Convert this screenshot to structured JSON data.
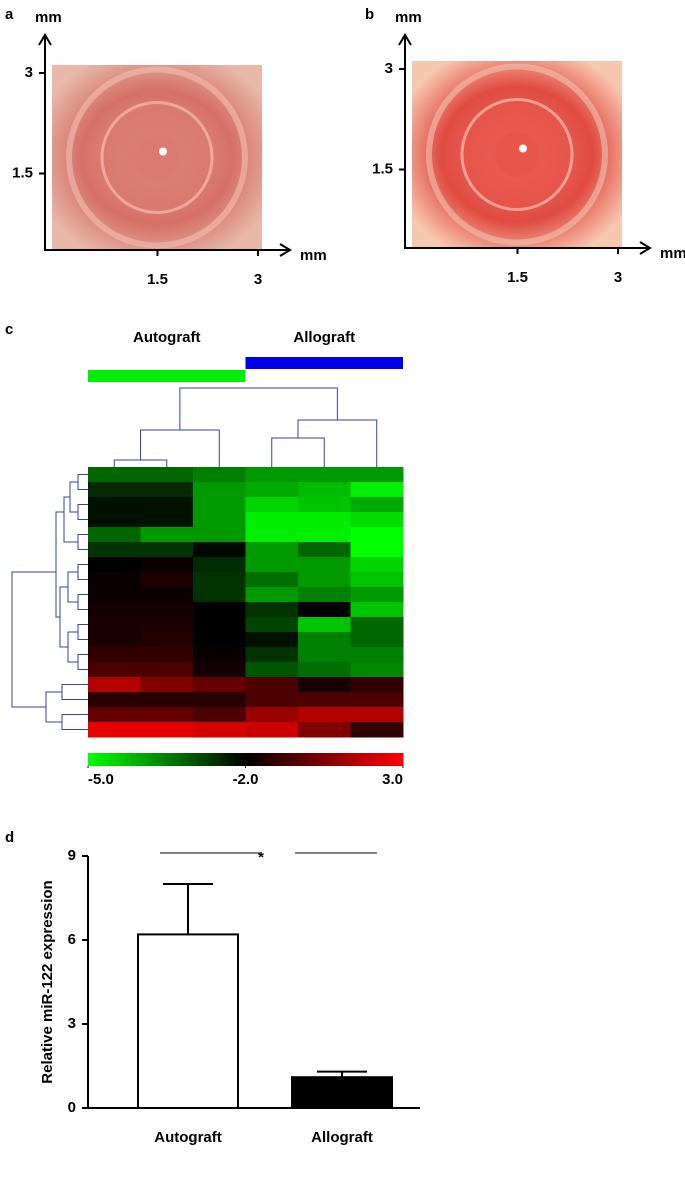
{
  "chart_data": [
    {
      "type": "image",
      "label": "a",
      "x_label": "mm",
      "y_label": "mm",
      "xlim": [
        0,
        3
      ],
      "ylim": [
        0,
        3
      ],
      "xticks": [
        1.5,
        3
      ],
      "yticks": [
        1.5,
        3
      ],
      "color": "#d97a70"
    },
    {
      "type": "image",
      "label": "b",
      "x_label": "mm",
      "y_label": "mm",
      "xlim": [
        0,
        3
      ],
      "ylim": [
        0,
        3
      ],
      "xticks": [
        1.5,
        3
      ],
      "yticks": [
        1.5,
        3
      ],
      "color": "#e8554a"
    },
    {
      "type": "heatmap",
      "label": "c",
      "column_groups": [
        {
          "name": "Autograft",
          "color": "#00ee00"
        },
        {
          "name": "Allograft",
          "color": "#0000ee"
        }
      ],
      "values": [
        [
          -3.2,
          -3.2,
          -3.5,
          -3.8,
          -3.8,
          -3.8
        ],
        [
          -2.5,
          -2.5,
          -3.8,
          -4.0,
          -4.2,
          -4.8
        ],
        [
          -2.2,
          -2.2,
          -3.8,
          -4.5,
          -4.3,
          -4.0
        ],
        [
          -2.2,
          -2.2,
          -3.8,
          -4.8,
          -4.8,
          -4.6
        ],
        [
          -3.2,
          -3.8,
          -3.8,
          -4.8,
          -4.8,
          -5.0
        ],
        [
          -2.6,
          -2.6,
          -2.1,
          -3.8,
          -3.2,
          -5.0
        ],
        [
          -2.0,
          -1.8,
          -2.5,
          -3.8,
          -3.8,
          -4.5
        ],
        [
          -1.8,
          -1.5,
          -2.6,
          -3.3,
          -3.8,
          -4.3
        ],
        [
          -1.8,
          -1.8,
          -2.6,
          -3.8,
          -3.5,
          -3.8
        ],
        [
          -1.6,
          -1.6,
          -2.0,
          -2.6,
          -2.0,
          -4.3
        ],
        [
          -1.5,
          -1.5,
          -2.0,
          -2.8,
          -4.3,
          -3.2
        ],
        [
          -1.5,
          -1.3,
          -2.0,
          -2.2,
          -3.5,
          -3.2
        ],
        [
          -1.0,
          -1.0,
          -1.8,
          -2.6,
          -3.5,
          -3.5
        ],
        [
          -0.5,
          -0.5,
          -1.6,
          -3.0,
          -3.3,
          -3.6
        ],
        [
          1.5,
          0.5,
          0.0,
          -0.5,
          -1.5,
          -1.0
        ],
        [
          -1.2,
          -1.2,
          -1.2,
          -0.5,
          -0.5,
          -0.5
        ],
        [
          0.0,
          0.0,
          -0.5,
          1.0,
          1.5,
          1.5
        ],
        [
          2.5,
          2.5,
          2.2,
          2.0,
          0.5,
          -1.0
        ]
      ],
      "color_range": [
        -5,
        -2,
        3
      ],
      "color_stops": [
        "#00ff00",
        "#000000",
        "#ff0000"
      ],
      "colorbar_ticks": [
        {
          "value": -5,
          "label": "-5.0"
        },
        {
          "value": -2,
          "label": "-2.0"
        },
        {
          "value": 3,
          "label": "3.0"
        }
      ]
    },
    {
      "type": "bar",
      "label": "d",
      "y_label": "Relative miR-122 expression",
      "categories": [
        "Autograft",
        "Allograft"
      ],
      "values": [
        6.2,
        1.1
      ],
      "errors": [
        1.8,
        0.2
      ],
      "colors": [
        "#ffffff",
        "#000000"
      ],
      "ylim": [
        0,
        9
      ],
      "yticks": [
        0,
        3,
        6,
        9
      ],
      "annotation": "*"
    }
  ]
}
